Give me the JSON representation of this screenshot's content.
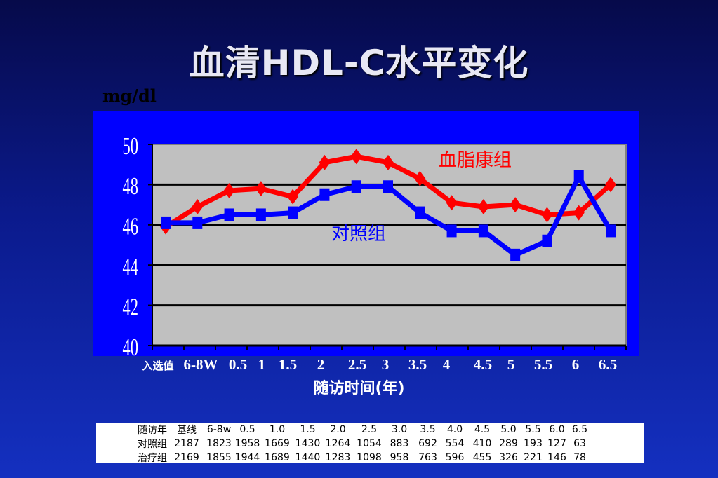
{
  "title": "血清HDL-C水平变化",
  "unit": "mg/dl",
  "colors": {
    "treatment": "#ff0000",
    "control": "#0000ff",
    "plot_bg": "#c0c0c0",
    "panel_bg": "#0000ff"
  },
  "chart_data": {
    "type": "line",
    "xlabel": "随访时间(年)",
    "ylabel": "mg/dl",
    "ylim": [
      40,
      50
    ],
    "yticks": [
      "40",
      "42",
      "44",
      "46",
      "48",
      "50"
    ],
    "grid": true,
    "categories": [
      "入选值",
      "6-8W",
      "0.5",
      "1",
      "1.5",
      "2",
      "2.5",
      "3",
      "3.5",
      "4",
      "4.5",
      "5",
      "5.5",
      "6",
      "6.5"
    ],
    "series": [
      {
        "name": "血脂康组",
        "color": "#ff0000",
        "marker": "diamond",
        "values": [
          45.9,
          46.9,
          47.7,
          47.8,
          47.4,
          49.1,
          49.4,
          49.1,
          48.3,
          47.1,
          46.9,
          47.0,
          46.5,
          46.6,
          48.0
        ]
      },
      {
        "name": "对照组",
        "color": "#0000ff",
        "marker": "square",
        "values": [
          46.1,
          46.1,
          46.5,
          46.5,
          46.6,
          47.5,
          47.9,
          47.9,
          46.6,
          45.7,
          45.7,
          44.5,
          45.2,
          48.4,
          45.7
        ]
      }
    ]
  },
  "table": {
    "rows": [
      [
        "随访年",
        "基线",
        "6-8w",
        "0.5",
        "1.0",
        "1.5",
        "2.0",
        "2.5",
        "3.0",
        "3.5",
        "4.0",
        "4.5",
        "5.0",
        "5.5",
        "6.0",
        "6.5"
      ],
      [
        "对照组",
        "2187",
        "1823",
        "1958",
        "1669",
        "1430",
        "1264",
        "1054",
        "883",
        "692",
        "554",
        "410",
        "289",
        "193",
        "127",
        "63"
      ],
      [
        "治疗组",
        "2169",
        "1855",
        "1944",
        "1689",
        "1440",
        "1283",
        "1098",
        "958",
        "763",
        "596",
        "455",
        "326",
        "221",
        "146",
        "78"
      ]
    ]
  }
}
